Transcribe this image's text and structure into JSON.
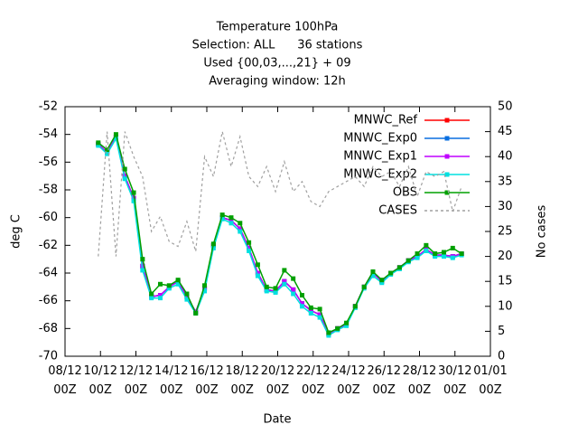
{
  "chart_data": {
    "type": "line",
    "title": "Temperature 100hPa",
    "subtitles": [
      "Selection: ALL      36 stations",
      "Used {00,03,...,21} + 09",
      "Averaging window: 12h"
    ],
    "xlabel": "Date",
    "ylabel": "deg C",
    "y2label": "No cases",
    "xlim": [
      0,
      24
    ],
    "xticks": [
      {
        "value": 0,
        "label": "08/12\n00Z"
      },
      {
        "value": 2,
        "label": "10/12\n00Z"
      },
      {
        "value": 4,
        "label": "12/12\n00Z"
      },
      {
        "value": 6,
        "label": "14/12\n00Z"
      },
      {
        "value": 8,
        "label": "16/12\n00Z"
      },
      {
        "value": 10,
        "label": "18/12\n00Z"
      },
      {
        "value": 12,
        "label": "20/12\n00Z"
      },
      {
        "value": 14,
        "label": "22/12\n00Z"
      },
      {
        "value": 16,
        "label": "24/12\n00Z"
      },
      {
        "value": 18,
        "label": "26/12\n00Z"
      },
      {
        "value": 20,
        "label": "28/12\n00Z"
      },
      {
        "value": 22,
        "label": "30/12\n00Z"
      },
      {
        "value": 24,
        "label": "01/01\n00Z"
      }
    ],
    "ylim": [
      -70,
      -52
    ],
    "yticks": [
      -70,
      -68,
      -66,
      -64,
      -62,
      -60,
      -58,
      -56,
      -54,
      -52
    ],
    "y2lim": [
      0,
      50
    ],
    "y2ticks": [
      0,
      5,
      10,
      15,
      20,
      25,
      30,
      35,
      40,
      45,
      50
    ],
    "legend": "top-right",
    "x": [
      1.875,
      2.375,
      2.875,
      3.375,
      3.875,
      4.375,
      4.875,
      5.375,
      5.875,
      6.375,
      6.875,
      7.375,
      7.875,
      8.375,
      8.875,
      9.375,
      9.875,
      10.375,
      10.875,
      11.375,
      11.875,
      12.375,
      12.875,
      13.375,
      13.875,
      14.375,
      14.875,
      15.375,
      15.875,
      16.375,
      16.875,
      17.375,
      17.875,
      18.375,
      18.875,
      19.375,
      19.875,
      20.375,
      20.875,
      21.375,
      21.875,
      22.375
    ],
    "series": [
      {
        "name": "MNWC_Ref",
        "color": "#ff0000",
        "values": [
          -54.7,
          -55.3,
          -54.2,
          -57.0,
          -58.6,
          -63.5,
          -65.7,
          -65.6,
          -65.0,
          -64.6,
          -65.7,
          -66.8,
          -65.1,
          -62.0,
          -60.0,
          -60.2,
          -60.8,
          -62.2,
          -64.0,
          -65.2,
          -65.3,
          -64.6,
          -65.2,
          -66.2,
          -66.7,
          -67.0,
          -68.4,
          -68.0,
          -67.7,
          -66.4,
          -65.0,
          -64.0,
          -64.6,
          -64.0,
          -63.6,
          -63.1,
          -62.8,
          -62.3,
          -62.7,
          -62.7,
          -62.8,
          -62.6
        ]
      },
      {
        "name": "MNWC_Exp0",
        "color": "#0a6fe0",
        "values": [
          -54.7,
          -55.3,
          -54.2,
          -57.0,
          -58.6,
          -63.5,
          -65.7,
          -65.6,
          -65.0,
          -64.6,
          -65.7,
          -66.8,
          -65.1,
          -62.0,
          -60.0,
          -60.2,
          -60.8,
          -62.2,
          -64.0,
          -65.2,
          -65.3,
          -64.6,
          -65.2,
          -66.2,
          -66.7,
          -67.0,
          -68.4,
          -68.0,
          -67.7,
          -66.4,
          -65.0,
          -64.0,
          -64.6,
          -64.0,
          -63.6,
          -63.1,
          -62.8,
          -62.3,
          -62.7,
          -62.7,
          -62.8,
          -62.6
        ]
      },
      {
        "name": "MNWC_Exp1",
        "color": "#c000ff",
        "values": [
          -54.7,
          -55.3,
          -54.2,
          -57.0,
          -58.6,
          -63.5,
          -65.7,
          -65.6,
          -65.0,
          -64.6,
          -65.7,
          -66.8,
          -65.1,
          -62.0,
          -60.0,
          -60.2,
          -60.8,
          -62.2,
          -64.0,
          -65.2,
          -65.3,
          -64.6,
          -65.2,
          -66.2,
          -66.7,
          -67.0,
          -68.4,
          -68.0,
          -67.7,
          -66.4,
          -65.0,
          -64.0,
          -64.6,
          -64.0,
          -63.6,
          -63.1,
          -62.8,
          -62.3,
          -62.7,
          -62.7,
          -62.8,
          -62.6
        ]
      },
      {
        "name": "MNWC_Exp2",
        "color": "#00e0e0",
        "values": [
          -54.8,
          -55.4,
          -54.3,
          -57.2,
          -58.8,
          -63.8,
          -65.8,
          -65.8,
          -65.1,
          -64.8,
          -65.9,
          -66.9,
          -65.3,
          -62.2,
          -60.1,
          -60.4,
          -61.0,
          -62.4,
          -64.2,
          -65.3,
          -65.4,
          -64.8,
          -65.5,
          -66.4,
          -66.9,
          -67.2,
          -68.5,
          -68.1,
          -67.8,
          -66.5,
          -65.1,
          -64.2,
          -64.7,
          -64.1,
          -63.7,
          -63.2,
          -62.9,
          -62.4,
          -62.8,
          -62.8,
          -62.9,
          -62.7
        ]
      },
      {
        "name": "OBS",
        "color": "#00a000",
        "values": [
          -54.6,
          -55.1,
          -54.0,
          -56.5,
          -58.2,
          -63.0,
          -65.5,
          -64.8,
          -64.9,
          -64.5,
          -65.5,
          -66.9,
          -64.9,
          -61.9,
          -59.8,
          -60.0,
          -60.4,
          -61.8,
          -63.4,
          -65.0,
          -65.1,
          -63.8,
          -64.4,
          -65.6,
          -66.5,
          -66.6,
          -68.3,
          -68.0,
          -67.6,
          -66.4,
          -65.0,
          -63.9,
          -64.5,
          -64.0,
          -63.6,
          -63.1,
          -62.6,
          -62.0,
          -62.6,
          -62.5,
          -62.2,
          -62.6
        ]
      },
      {
        "name": "CASES",
        "color": "#a0a0a0",
        "axis": "y2",
        "dashed": true,
        "values": [
          20,
          45,
          20,
          45,
          40,
          36,
          25,
          28,
          23,
          22,
          27,
          21,
          40,
          36,
          45,
          38,
          44,
          36,
          34,
          38,
          33,
          39,
          33,
          35,
          31,
          30,
          33,
          34,
          35,
          36,
          34,
          38,
          36,
          37,
          34,
          38,
          32,
          37,
          36,
          37,
          29,
          34
        ]
      }
    ]
  }
}
